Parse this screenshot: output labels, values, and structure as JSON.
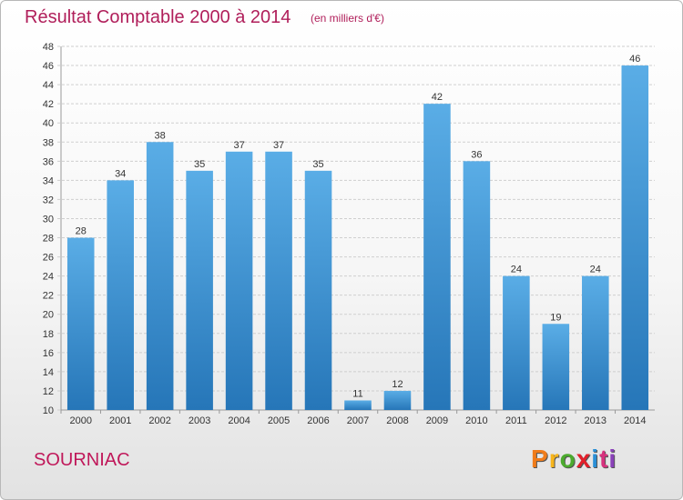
{
  "header": {
    "title": "Résultat Comptable 2000 à 2014",
    "subtitle": "(en milliers d'€)"
  },
  "footer": {
    "city": "SOURNIAC",
    "logo": "Proxiti",
    "logo_colors": [
      "#f07c1a",
      "#f7b51c",
      "#4caa2e",
      "#e2202b",
      "#2a8fd6",
      "#d6327d",
      "#8a42b9"
    ]
  },
  "colors": {
    "bar_top": "#5aade6",
    "bar_bottom": "#2676b8",
    "grid": "#cfcfcf",
    "title": "#b01e5a"
  },
  "chart_data": {
    "type": "bar",
    "title": "Résultat Comptable 2000 à 2014",
    "subtitle": "(en milliers d'€)",
    "xlabel": "",
    "ylabel": "",
    "categories": [
      "2000",
      "2001",
      "2002",
      "2003",
      "2004",
      "2005",
      "2006",
      "2007",
      "2008",
      "2009",
      "2010",
      "2011",
      "2012",
      "2013",
      "2014"
    ],
    "values": [
      28,
      34,
      38,
      35,
      37,
      37,
      35,
      11,
      12,
      42,
      36,
      24,
      19,
      24,
      46
    ],
    "ylim": [
      10,
      48
    ],
    "ytick_step": 2,
    "grid": true
  }
}
